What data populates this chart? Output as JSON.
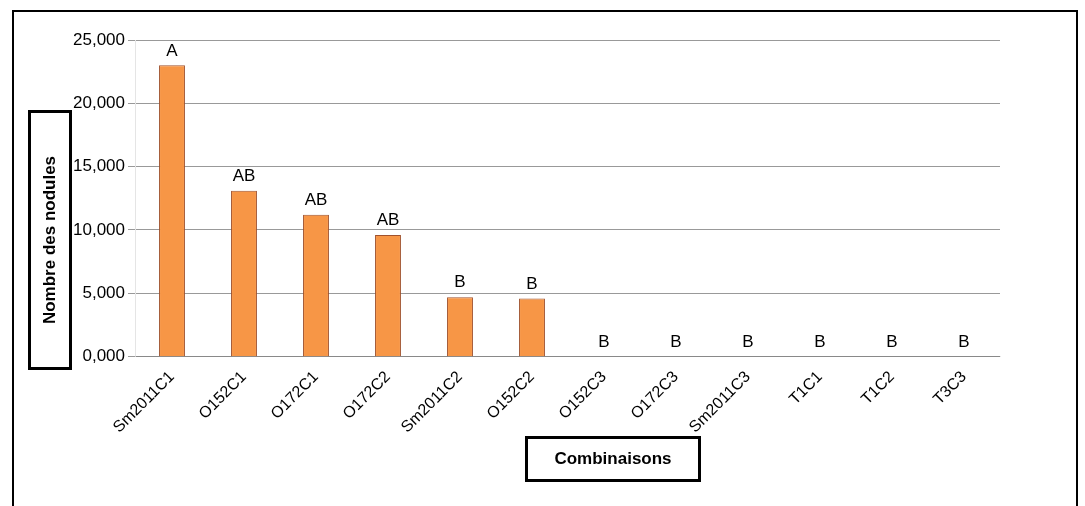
{
  "chart_data": {
    "type": "bar",
    "xlabel": "Combinaisons",
    "ylabel": "Nombre des nodules",
    "categories": [
      "Sm2011C1",
      "O152C1",
      "O172C1",
      "O172C2",
      "Sm2011C2",
      "O152C2",
      "O152C3",
      "O172C3",
      "Sm2011C3",
      "T1C1",
      "T1C2",
      "T3C3"
    ],
    "values": [
      23000,
      13100,
      11200,
      9600,
      4700,
      4600,
      0,
      0,
      0,
      0,
      0,
      0
    ],
    "value_labels": [
      "A",
      "AB",
      "AB",
      "AB",
      "B",
      "B",
      "B",
      "B",
      "B",
      "B",
      "B",
      "B"
    ],
    "color": "#f79646",
    "ylim": [
      0,
      25000
    ],
    "yticks": [
      {
        "value": 0,
        "label": "0,000"
      },
      {
        "value": 5000,
        "label": "5,000"
      },
      {
        "value": 10000,
        "label": "10,000"
      },
      {
        "value": 15000,
        "label": "15,000"
      },
      {
        "value": 20000,
        "label": "20,000"
      },
      {
        "value": 25000,
        "label": "25,000"
      }
    ],
    "grid": "y",
    "legend": false
  }
}
